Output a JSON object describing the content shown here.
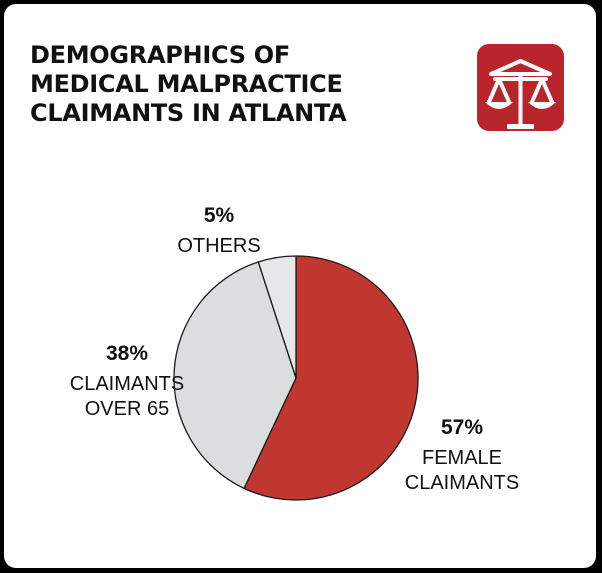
{
  "title_lines": [
    "DEMOGRAPHICS OF",
    "MEDICAL MALPRACTICE",
    "CLAIMANTS IN ATLANTA"
  ],
  "logo": {
    "icon": "scales-of-justice-icon",
    "color": "#b8252c"
  },
  "chart_data": {
    "type": "pie",
    "title": "DEMOGRAPHICS OF MEDICAL MALPRACTICE CLAIMANTS IN ATLANTA",
    "start": "12 o'clock",
    "direction": "clockwise",
    "slices": [
      {
        "label_lines": [
          "FEMALE",
          "CLAIMANTS"
        ],
        "value": 57,
        "value_label": "57%",
        "color": "#c0372f"
      },
      {
        "label_lines": [
          "CLAIMANTS",
          "OVER 65"
        ],
        "value": 38,
        "value_label": "38%",
        "color": "#dcdddf"
      },
      {
        "label_lines": [
          "OTHERS"
        ],
        "value": 5,
        "value_label": "5%",
        "color": "#e6e7e9"
      }
    ]
  }
}
